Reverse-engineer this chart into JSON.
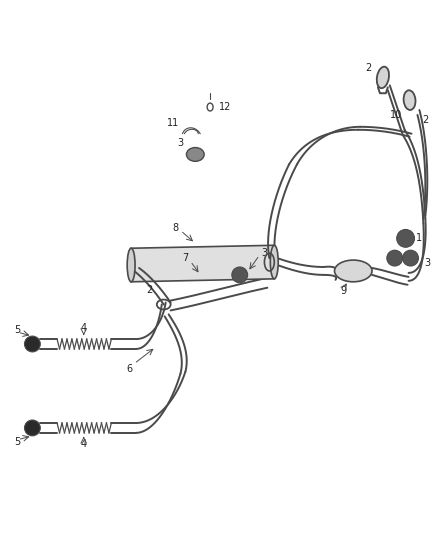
{
  "bg_color": "#ffffff",
  "line_color": "#4a4a4a",
  "label_color": "#222222",
  "fig_width": 4.38,
  "fig_height": 5.33,
  "dpi": 100,
  "lw_pipe": 1.4,
  "lw_thin": 0.8
}
